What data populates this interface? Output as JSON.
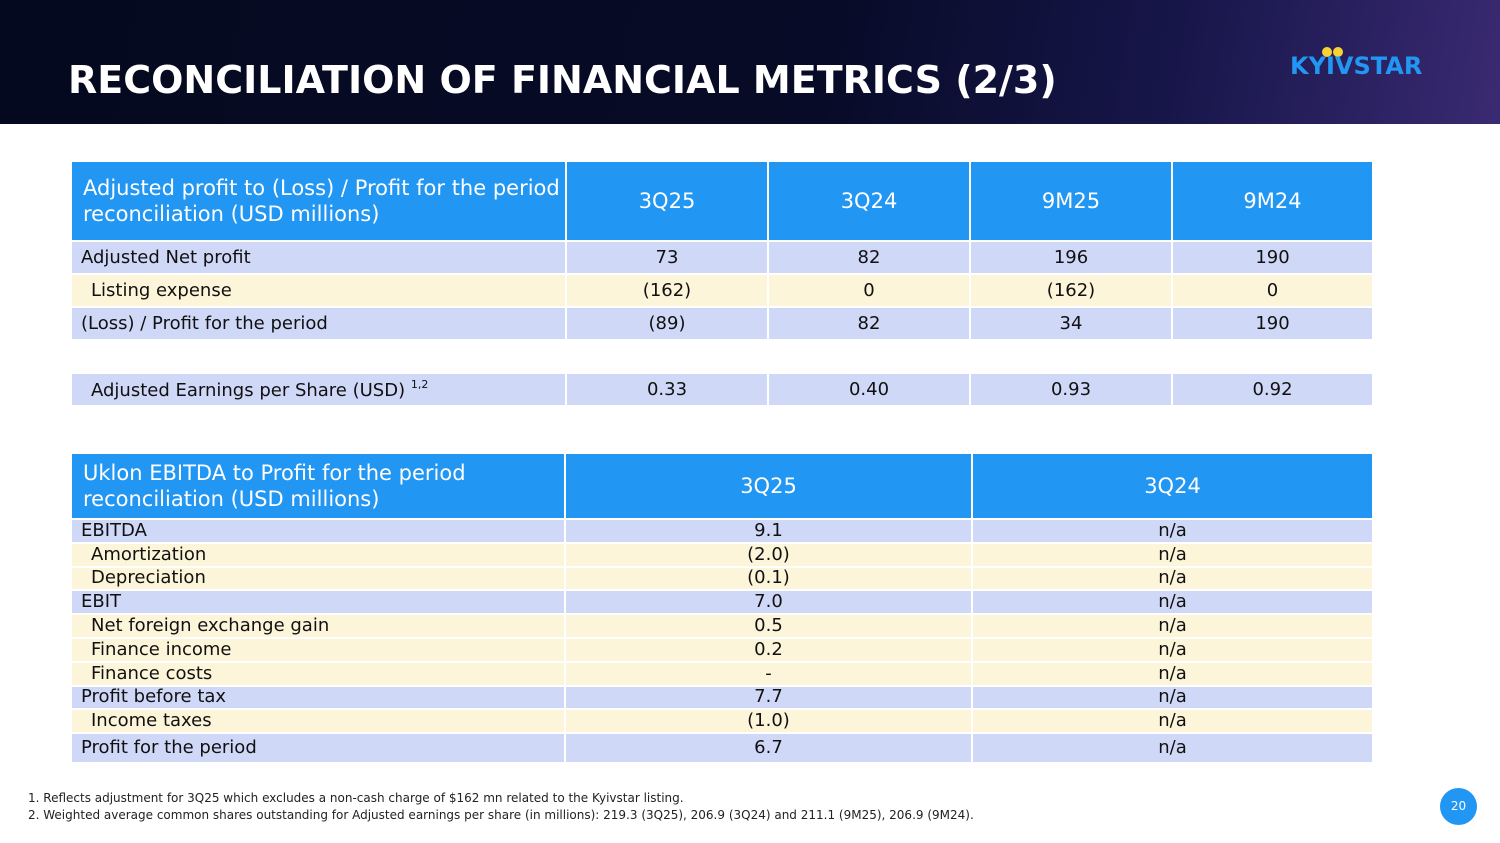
{
  "header": {
    "title": "RECONCILIATION OF FINANCIAL METRICS (2/3)",
    "logo_text": "KYIVSTAR"
  },
  "table1": {
    "header": [
      "Adjusted profit to (Loss) / Profit for the period reconciliation (USD millions)",
      "3Q25",
      "3Q24",
      "9M25",
      "9M24"
    ],
    "rows": [
      {
        "label": "Adjusted Net profit",
        "values": [
          "73",
          "82",
          "196",
          "190"
        ]
      },
      {
        "label": "Listing expense",
        "values": [
          "(162)",
          "0",
          "(162)",
          "0"
        ]
      },
      {
        "label": "(Loss) / Profit for the period",
        "values": [
          "(89)",
          "82",
          "34",
          "190"
        ]
      }
    ],
    "eps": {
      "label": "Adjusted Earnings per Share (USD)",
      "sup": "1,2",
      "values": [
        "0.33",
        "0.40",
        "0.93",
        "0.92"
      ]
    }
  },
  "table2": {
    "header": [
      "Uklon EBITDA to Profit for the period reconciliation (USD millions)",
      "3Q25",
      "3Q24"
    ],
    "rows": [
      {
        "label": "EBITDA",
        "values": [
          "9.1",
          "n/a"
        ]
      },
      {
        "label": "Amortization",
        "values": [
          "(2.0)",
          "n/a"
        ]
      },
      {
        "label": "Depreciation",
        "values": [
          "(0.1)",
          "n/a"
        ]
      },
      {
        "label": "EBIT",
        "values": [
          "7.0",
          "n/a"
        ]
      },
      {
        "label": "Net foreign exchange gain",
        "values": [
          "0.5",
          "n/a"
        ]
      },
      {
        "label": "Finance income",
        "values": [
          "0.2",
          "n/a"
        ]
      },
      {
        "label": "Finance costs",
        "values": [
          "-",
          "n/a"
        ]
      },
      {
        "label": "Profit before tax",
        "values": [
          "7.7",
          "n/a"
        ]
      },
      {
        "label": "Income taxes",
        "values": [
          "(1.0)",
          "n/a"
        ]
      },
      {
        "label": "Profit for the period",
        "values": [
          "6.7",
          "n/a"
        ]
      }
    ]
  },
  "footnotes": [
    "1. Reflects adjustment for 3Q25 which excludes a non-cash charge of $162 mn related to the Kyivstar listing.",
    "2. Weighted average common shares outstanding for Adjusted earnings per share (in millions): 219.3 (3Q25), 206.9 (3Q24) and 211.1 (9M25), 206.9 (9M24)."
  ],
  "page_number": "20",
  "colors": {
    "header_bg": "#05091f",
    "accent_blue": "#2196f3",
    "row_blue": "#d0d8f8",
    "row_cream": "#fdf5d9",
    "logo_dots": "#f7d234"
  }
}
